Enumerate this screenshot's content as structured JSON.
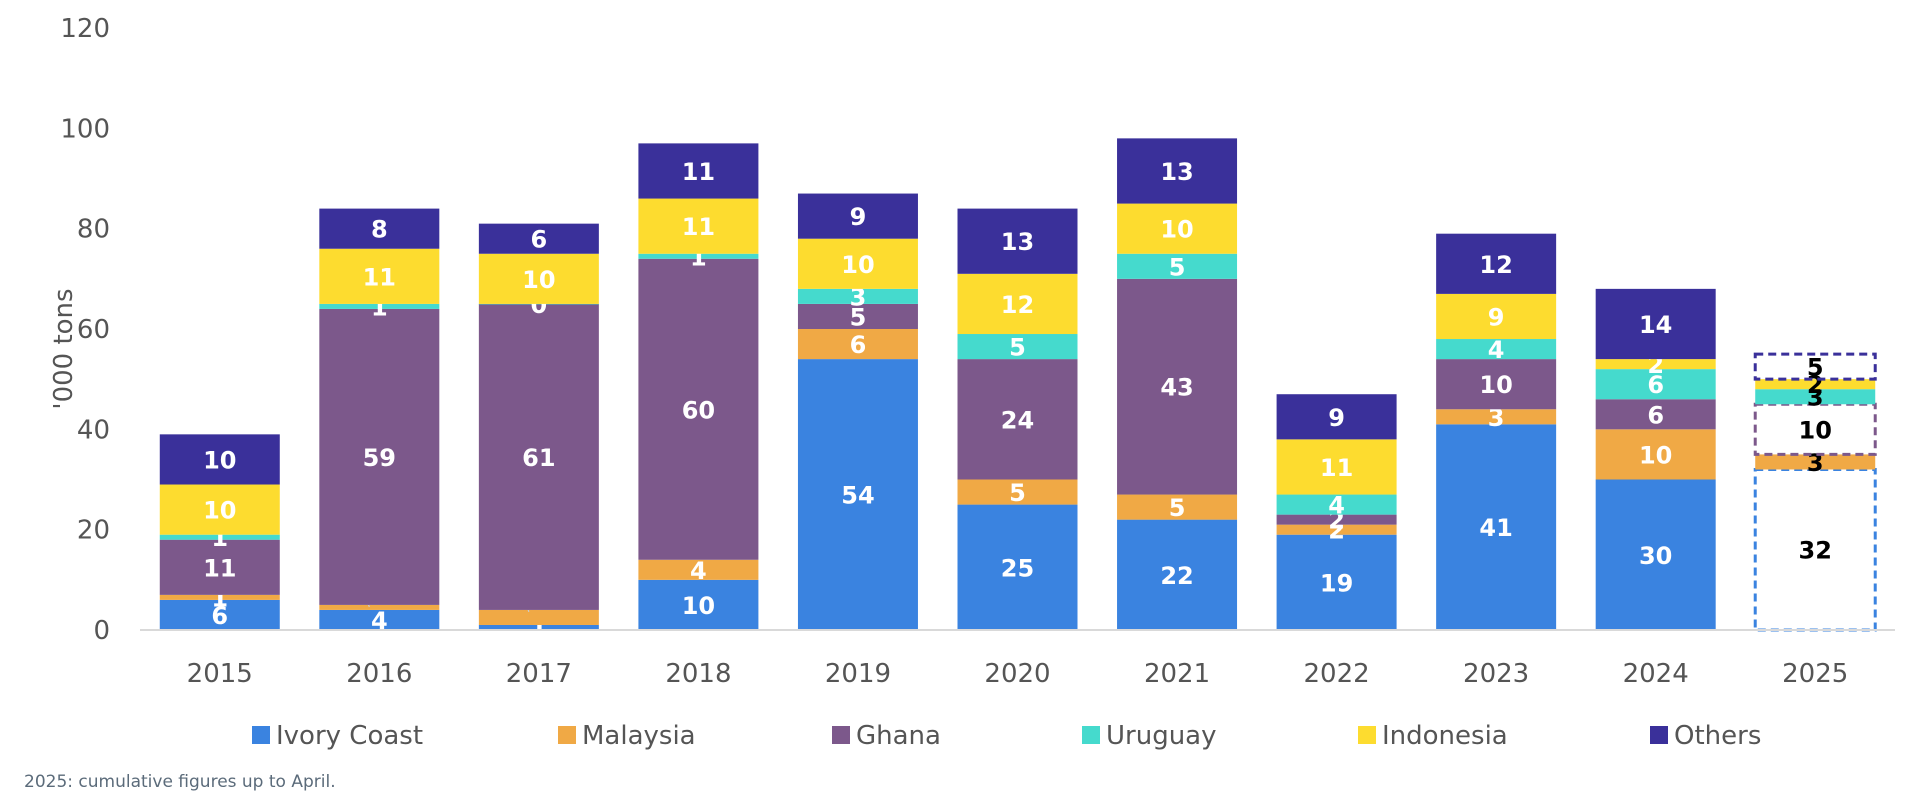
{
  "chart_data": {
    "type": "bar",
    "stacked": true,
    "ylabel": "'000 tons",
    "ylim": [
      0,
      120
    ],
    "yticks": [
      0,
      20,
      40,
      60,
      80,
      100,
      120
    ],
    "grid": false,
    "legend_position": "bottom",
    "categories": [
      "2015",
      "2016",
      "2017",
      "2018",
      "2019",
      "2020",
      "2021",
      "2022",
      "2023",
      "2024",
      "2025"
    ],
    "partial_categories": [
      "2025"
    ],
    "series": [
      {
        "name": "Ivory Coast",
        "color": "#3A83E0",
        "values": [
          6,
          4,
          1,
          10,
          54,
          25,
          22,
          19,
          41,
          30,
          32
        ]
      },
      {
        "name": "Malaysia",
        "color": "#F0A945",
        "values": [
          1,
          1,
          3,
          4,
          6,
          5,
          5,
          2,
          3,
          10,
          3
        ]
      },
      {
        "name": "Ghana",
        "color": "#7C588B",
        "values": [
          11,
          59,
          61,
          60,
          5,
          24,
          43,
          2,
          10,
          6,
          10
        ]
      },
      {
        "name": "Uruguay",
        "color": "#45DACD",
        "values": [
          1,
          1,
          0,
          1,
          3,
          5,
          5,
          4,
          4,
          6,
          3
        ]
      },
      {
        "name": "Indonesia",
        "color": "#FDDC2F",
        "values": [
          10,
          11,
          10,
          11,
          10,
          12,
          10,
          11,
          9,
          2,
          2
        ]
      },
      {
        "name": "Others",
        "color": "#3A309A",
        "values": [
          10,
          8,
          6,
          11,
          9,
          13,
          13,
          9,
          12,
          14,
          5
        ]
      }
    ],
    "note": "2025: cumulative figures up to April."
  }
}
